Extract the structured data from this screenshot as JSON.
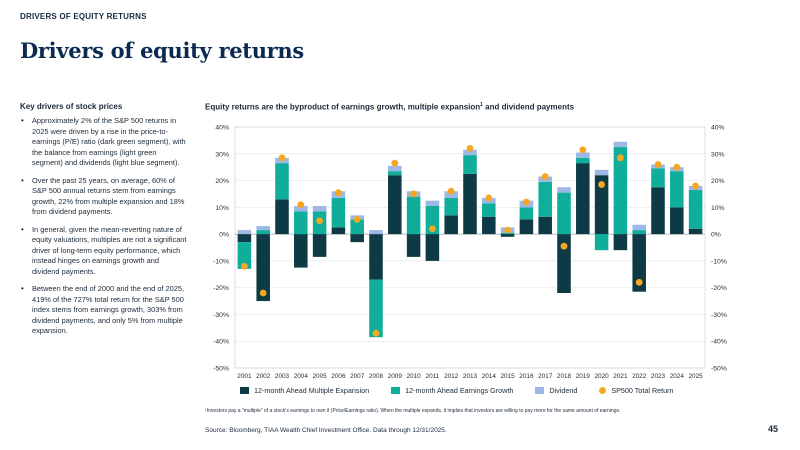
{
  "eyebrow": "DRIVERS OF EQUITY RETURNS",
  "title": "Drivers of equity returns",
  "left_heading": "Key drivers of stock prices",
  "bullets": [
    "Approximately 2% of the S&P 500 returns in 2025 were driven by a rise in the price-to-earnings (P/E) ratio (dark green segment), with the balance from earnings (light green segment) and dividends (light blue segment).",
    "Over the past 25 years, on average, 60% of S&P 500 annual returns stem from earnings growth, 22% from multiple expansion and 18% from dividend payments.",
    "In general, given the mean-reverting nature of equity valuations, multiples are not a significant driver of long-term equity performance, which instead hinges on earnings growth and dividend payments.",
    "Between the end of 2000 and the end of 2025, 419% of the 727% total return for the S&P 500 index stems from earnings growth, 303% from dividend payments, and only 5% from multiple expansion."
  ],
  "chart_title": "Equity returns are the byproduct of earnings growth, multiple expansion",
  "chart_title_sup": "1",
  "chart_title_end": " and dividend payments",
  "footnote": "¹Investors pay a “multiple” of a stock’s earnings to own it (Price/Earnings ratio). When the multiple expands, it implies that investors are willing to pay more for the same amount of earnings.",
  "source": "Source: Bloomberg, TIAA Wealth Chief Investment Office. Data through 12/31/2025.",
  "page_number": "45",
  "colors": {
    "multiple": "#0d3a45",
    "earnings": "#0fae9b",
    "dividend": "#9db8e6",
    "total": "#f5a623",
    "grid": "#e4e7ea",
    "axis": "#333333"
  },
  "chart_data": {
    "type": "bar",
    "stacked": true,
    "title": "Equity returns are the byproduct of earnings growth, multiple expansion¹ and dividend payments",
    "xlabel": "",
    "ylabel": "",
    "ylim": [
      -50,
      40
    ],
    "y_ticks": [
      "40%",
      "30%",
      "20%",
      "10%",
      "0%",
      "-10%",
      "-20%",
      "-30%",
      "-40%",
      "-50%"
    ],
    "y_tick_values": [
      40,
      30,
      20,
      10,
      0,
      -10,
      -20,
      -30,
      -40,
      -50
    ],
    "grid": true,
    "legend_position": "bottom",
    "categories": [
      "2001",
      "2002",
      "2003",
      "2004",
      "2005",
      "2006",
      "2007",
      "2008",
      "2009",
      "2010",
      "2011",
      "2012",
      "2013",
      "2014",
      "2015",
      "2016",
      "2017",
      "2018",
      "2019",
      "2020",
      "2021",
      "2022",
      "2023",
      "2024",
      "2025"
    ],
    "series": [
      {
        "name": "12-month Ahead Multiple Expansion",
        "kind": "bar",
        "values": [
          -3,
          -25,
          13,
          -12.5,
          -8.5,
          2.5,
          -3,
          -17,
          22,
          -8.5,
          -10,
          7,
          22.5,
          6.5,
          -1,
          5.5,
          6.5,
          -22,
          26.5,
          22,
          -6,
          -21.5,
          17.5,
          10,
          2
        ]
      },
      {
        "name": "12-month Ahead Earnings Growth",
        "kind": "bar",
        "values": [
          -10,
          1.5,
          13.5,
          8.5,
          8.5,
          11,
          5.5,
          -21.5,
          1.5,
          14,
          10.5,
          6.5,
          7,
          5,
          0.5,
          4.5,
          13,
          15.5,
          2,
          -6,
          32.5,
          1.5,
          7,
          13.5,
          14.5
        ]
      },
      {
        "name": "Dividend",
        "kind": "bar",
        "values": [
          1.5,
          1.5,
          2,
          2,
          2,
          2.5,
          1.5,
          1.5,
          2,
          2,
          2,
          2.5,
          2,
          2,
          2,
          2.5,
          2,
          2,
          2,
          2,
          2,
          2,
          1.5,
          1.5,
          1.5
        ]
      },
      {
        "name": "SP500 Total Return",
        "kind": "marker",
        "values": [
          -12,
          -22,
          28.5,
          11,
          5,
          15.5,
          5.5,
          -37,
          26.5,
          15,
          2,
          16,
          32,
          13.5,
          1.5,
          12,
          21.5,
          -4.5,
          31.5,
          18.5,
          28.5,
          -18,
          26,
          25,
          18
        ]
      }
    ]
  }
}
